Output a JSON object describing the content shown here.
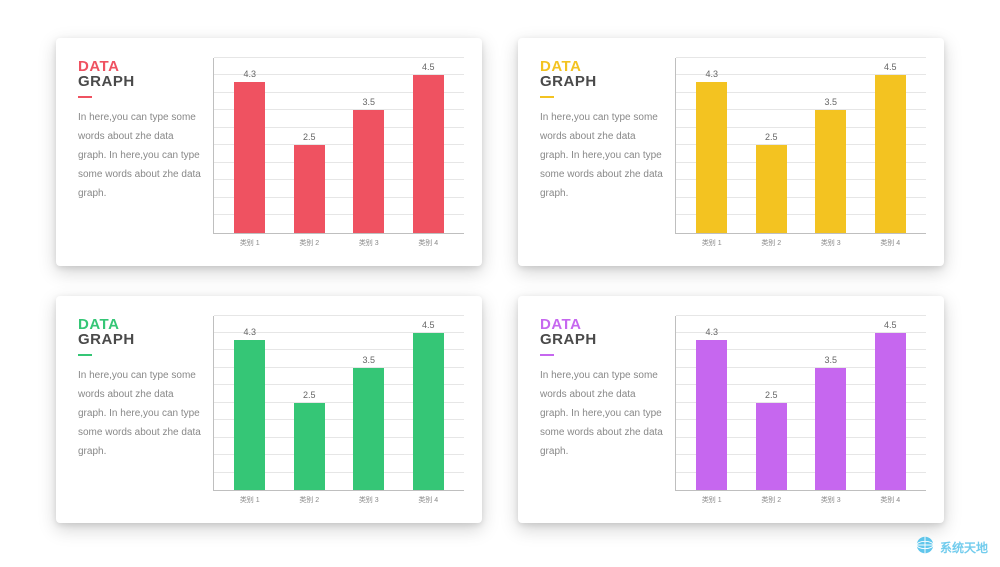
{
  "page": {
    "background_color": "#ffffff",
    "card_shadow": "0 6px 18px rgba(0,0,0,0.18)",
    "axis_color": "#bfbfbf",
    "grid_color": "#e6e6e6",
    "grid_line_count": 10,
    "desc_color": "#888888",
    "value_label_color": "#666666",
    "title_line2_color": "#4a4a4a"
  },
  "cards": [
    {
      "title_line1": "DATA",
      "title_line2": "GRAPH",
      "accent_color": "#ef5261",
      "desc": "In here,you can type some words about zhe data graph. In here,you can type some words about zhe data graph.",
      "chart": {
        "type": "bar",
        "ylim": [
          0,
          5
        ],
        "categories": [
          "类别 1",
          "类别 2",
          "类别 3",
          "类别 4"
        ],
        "values": [
          4.3,
          2.5,
          3.5,
          4.5
        ],
        "bar_color": "#ef5261",
        "value_fontsize": 9,
        "category_fontsize": 7,
        "bar_width": 0.6
      }
    },
    {
      "title_line1": "DATA",
      "title_line2": "GRAPH",
      "accent_color": "#f3c321",
      "desc": "In here,you can type some words about zhe data graph. In here,you can type some words about zhe data graph.",
      "chart": {
        "type": "bar",
        "ylim": [
          0,
          5
        ],
        "categories": [
          "类别 1",
          "类别 2",
          "类别 3",
          "类别 4"
        ],
        "values": [
          4.3,
          2.5,
          3.5,
          4.5
        ],
        "bar_color": "#f3c321",
        "value_fontsize": 9,
        "category_fontsize": 7,
        "bar_width": 0.6
      }
    },
    {
      "title_line1": "DATA",
      "title_line2": "GRAPH",
      "accent_color": "#35c676",
      "desc": "In here,you can type some words about zhe data graph. In here,you can type some words about zhe data graph.",
      "chart": {
        "type": "bar",
        "ylim": [
          0,
          5
        ],
        "categories": [
          "类别 1",
          "类别 2",
          "类别 3",
          "类别 4"
        ],
        "values": [
          4.3,
          2.5,
          3.5,
          4.5
        ],
        "bar_color": "#35c676",
        "value_fontsize": 9,
        "category_fontsize": 7,
        "bar_width": 0.6
      }
    },
    {
      "title_line1": "DATA",
      "title_line2": "GRAPH",
      "accent_color": "#c667ef",
      "desc": "In here,you can type some words about zhe data graph. In here,you can type some words about zhe data graph.",
      "chart": {
        "type": "bar",
        "ylim": [
          0,
          5
        ],
        "categories": [
          "类别 1",
          "类别 2",
          "类别 3",
          "类别 4"
        ],
        "values": [
          4.3,
          2.5,
          3.5,
          4.5
        ],
        "bar_color": "#c667ef",
        "value_fontsize": 9,
        "category_fontsize": 7,
        "bar_width": 0.6
      }
    }
  ],
  "watermark": {
    "text": "系统天地",
    "text_color": "#44bbe8",
    "globe_color": "#2bb4e6"
  }
}
